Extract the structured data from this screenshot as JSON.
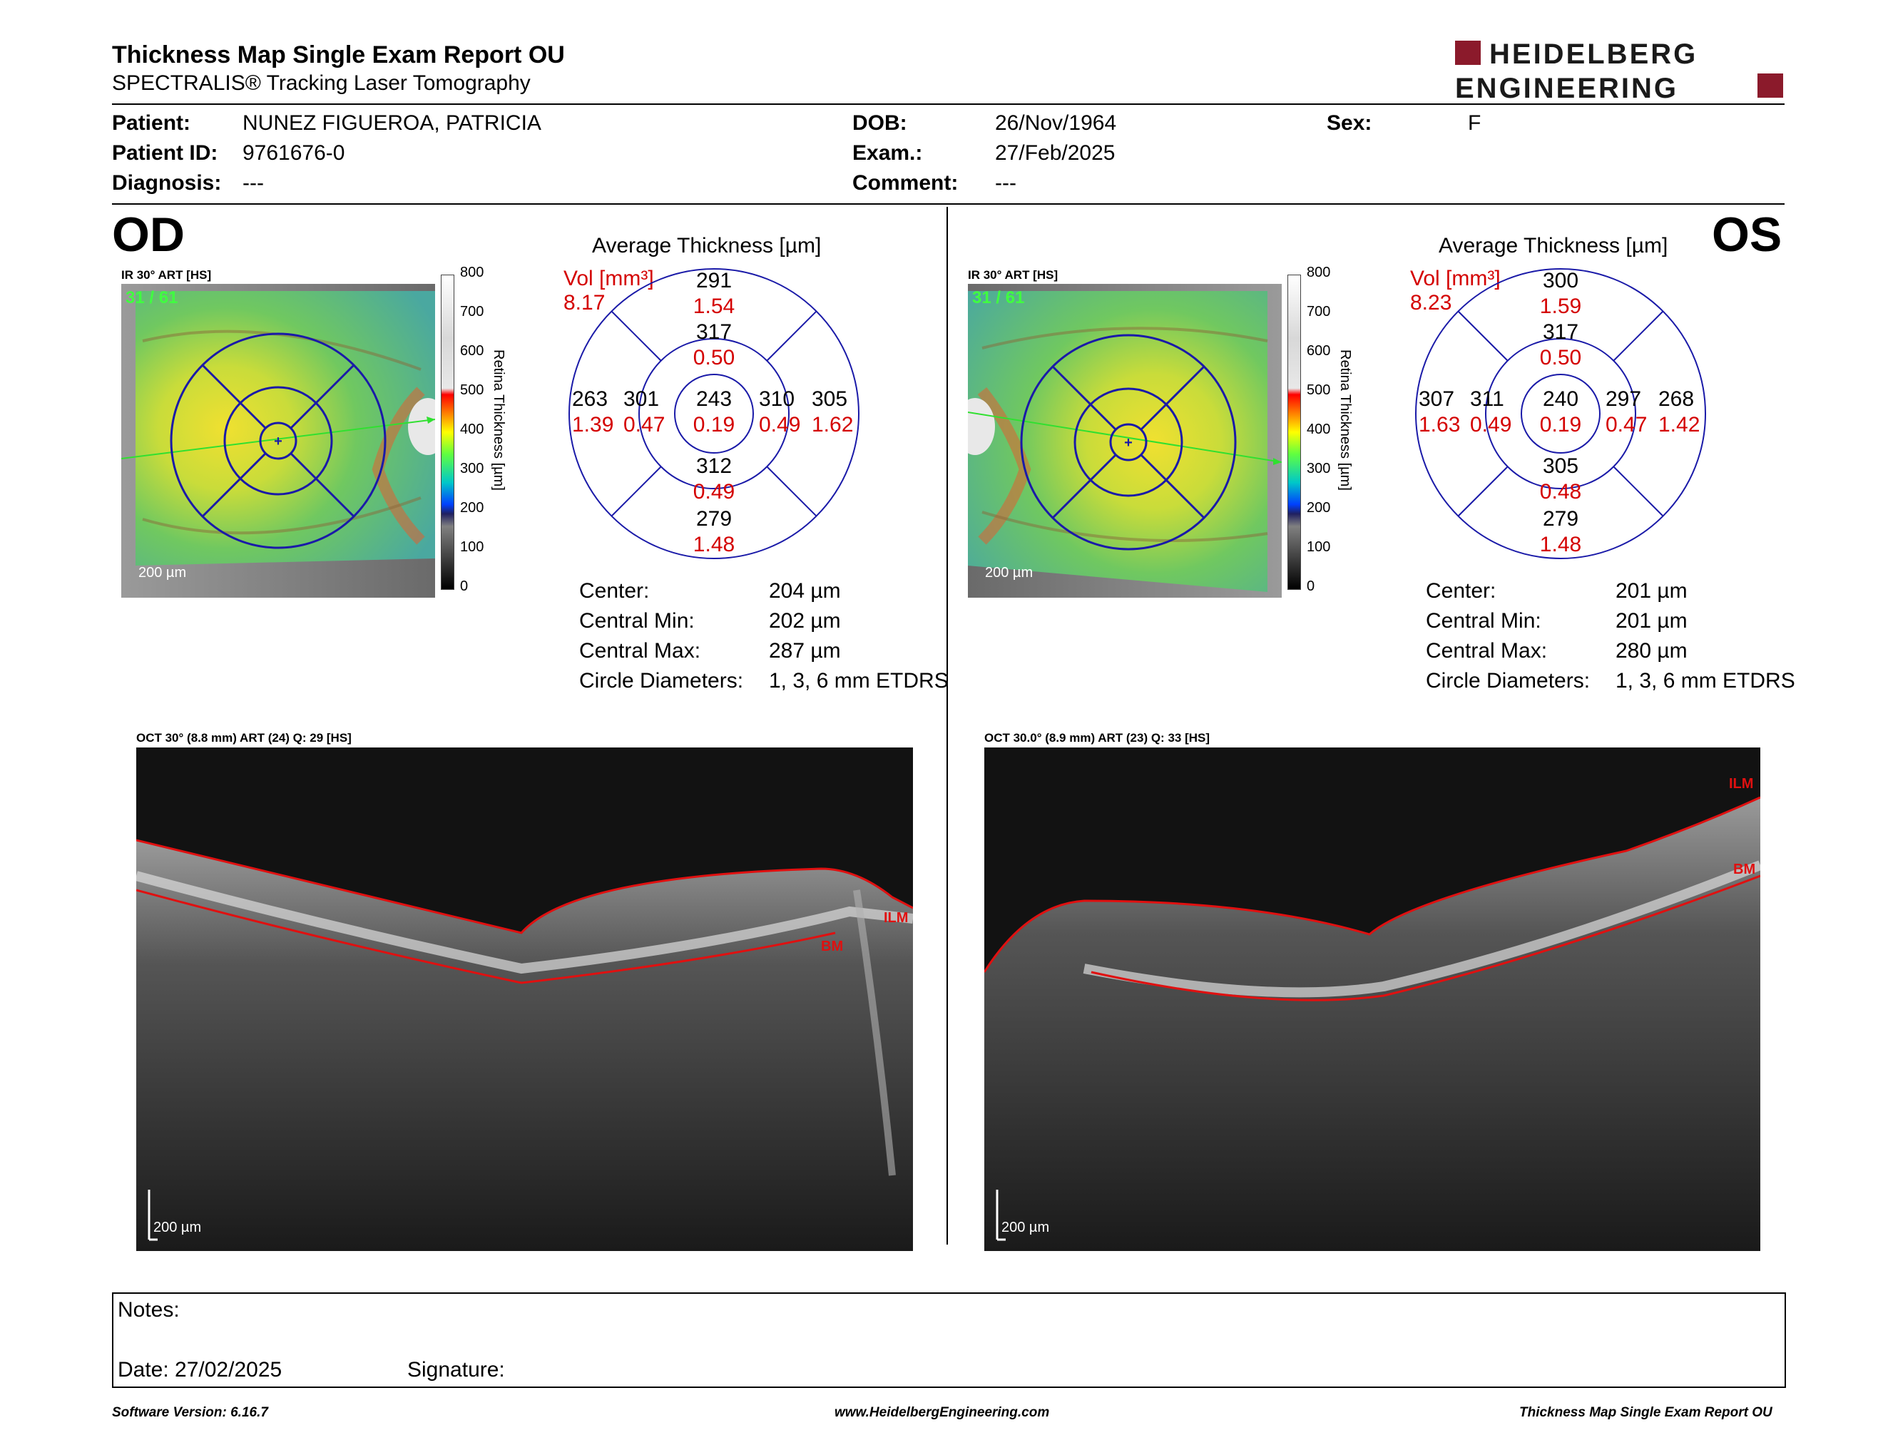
{
  "header": {
    "title": "Thickness Map Single Exam Report OU",
    "subtitle": "SPECTRALIS® Tracking Laser Tomography",
    "logo_line1": "HEIDELBERG",
    "logo_line2": "ENGINEERING",
    "brand_color": "#8b1a2b"
  },
  "patient": {
    "patient_label": "Patient:",
    "patient_value": "NUNEZ FIGUEROA, PATRICIA",
    "id_label": "Patient ID:",
    "id_value": "9761676-0",
    "diag_label": "Diagnosis:",
    "diag_value": "---",
    "dob_label": "DOB:",
    "dob_value": "26/Nov/1964",
    "exam_label": "Exam.:",
    "exam_value": "27/Feb/2025",
    "comment_label": "Comment:",
    "comment_value": "---",
    "sex_label": "Sex:",
    "sex_value": "F"
  },
  "scale": {
    "ticks": [
      "800",
      "700",
      "600",
      "500",
      "400",
      "300",
      "200",
      "100",
      "0"
    ],
    "axis_label": "Retina  Thickness [µm]"
  },
  "od": {
    "eye": "OD",
    "ir_label": "IR 30° ART [HS]",
    "frame": "31 / 61",
    "scale_bar": "200 µm",
    "avg_title": "Average Thickness [µm]",
    "vol_label": "Vol [mm³]",
    "vol_value": "8.17",
    "sectors": {
      "outer_sup": "291",
      "outer_sup_vol": "1.54",
      "inner_sup": "317",
      "inner_sup_vol": "0.50",
      "outer_temp": "263",
      "outer_temp_vol": "1.39",
      "inner_temp": "301",
      "inner_temp_vol": "0.47",
      "center": "243",
      "center_vol": "0.19",
      "inner_nas": "310",
      "inner_nas_vol": "0.49",
      "outer_nas": "305",
      "outer_nas_vol": "1.62",
      "inner_inf": "312",
      "inner_inf_vol": "0.49",
      "outer_inf": "279",
      "outer_inf_vol": "1.48"
    },
    "stats": {
      "center_label": "Center:",
      "center_value": "204 µm",
      "min_label": "Central Min:",
      "min_value": "202 µm",
      "max_label": "Central Max:",
      "max_value": "287 µm",
      "diam_label": "Circle Diameters:",
      "diam_value": "1, 3, 6 mm ETDRS"
    },
    "oct_label": "OCT 30° (8.8 mm) ART (24) Q: 29 [HS]",
    "oct_scale": "200 µm",
    "ilm": "ILM",
    "bm": "BM"
  },
  "os": {
    "eye": "OS",
    "ir_label": "IR 30° ART [HS]",
    "frame": "31 / 61",
    "scale_bar": "200 µm",
    "avg_title": "Average Thickness [µm]",
    "vol_label": "Vol [mm³]",
    "vol_value": "8.23",
    "sectors": {
      "outer_sup": "300",
      "outer_sup_vol": "1.59",
      "inner_sup": "317",
      "inner_sup_vol": "0.50",
      "outer_temp": "307",
      "outer_temp_vol": "1.63",
      "inner_temp": "311",
      "inner_temp_vol": "0.49",
      "center": "240",
      "center_vol": "0.19",
      "inner_nas": "297",
      "inner_nas_vol": "0.47",
      "outer_nas": "268",
      "outer_nas_vol": "1.42",
      "inner_inf": "305",
      "inner_inf_vol": "0.48",
      "outer_inf": "279",
      "outer_inf_vol": "1.48"
    },
    "stats": {
      "center_label": "Center:",
      "center_value": "201 µm",
      "min_label": "Central Min:",
      "min_value": "201 µm",
      "max_label": "Central Max:",
      "max_value": "280 µm",
      "diam_label": "Circle Diameters:",
      "diam_value": "1, 3, 6 mm ETDRS"
    },
    "oct_label": "OCT 30.0° (8.9 mm) ART (23) Q: 33 [HS]",
    "oct_scale": "200 µm",
    "ilm": "ILM",
    "bm": "BM"
  },
  "notes": {
    "notes_label": "Notes:",
    "date_label": "Date: 27/02/2025",
    "signature_label": "Signature:"
  },
  "footer": {
    "software": "Software Version: 6.16.7",
    "website": "www.HeidelbergEngineering.com",
    "report": "Thickness Map Single Exam Report OU"
  },
  "colors": {
    "grid_blue": "#1a1aa8",
    "vol_red": "#d40000",
    "segmentation_red": "#e01010"
  }
}
